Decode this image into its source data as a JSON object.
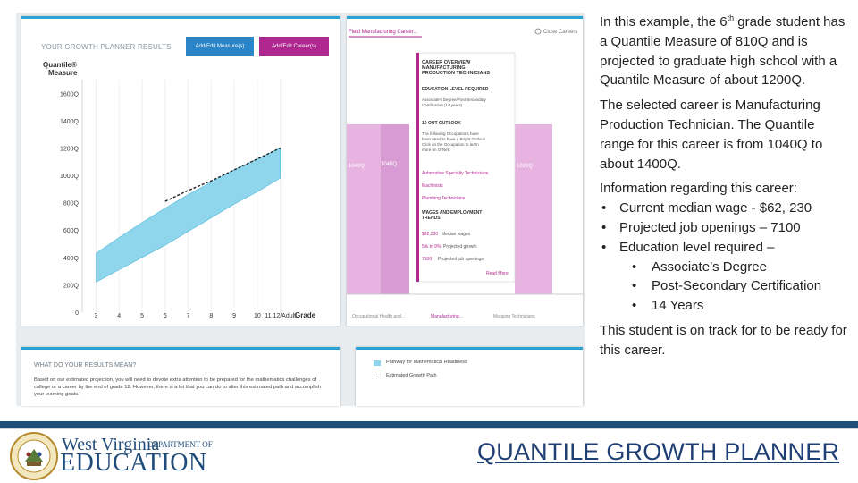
{
  "shot": {
    "results_title": "YOUR GROWTH PLANNER RESULTS",
    "btn_measure": "Add/Edit Measure(s)",
    "btn_career": "Add/Edit Career(s)",
    "y_title_1": "Quantile®",
    "y_title_2": "Measure",
    "y_ticks": [
      "1600Q",
      "1400Q",
      "1200Q",
      "1000Q",
      "800Q",
      "600Q",
      "400Q",
      "200Q",
      "0"
    ],
    "x_ticks": [
      "3",
      "4",
      "5",
      "6",
      "7",
      "8",
      "9",
      "10",
      "11 12/Adult"
    ],
    "x_title": "Grade",
    "career_tab": "Field Manufacturing Career...",
    "close": "Close Careers",
    "band_left_low": "1040Q",
    "band_left_high": "1040Q",
    "band_right": "1020Q",
    "career_overview": {
      "heading": "CAREER OVERVIEW MANUFACTURING PRODUCTION TECHNICIANS",
      "education_heading": "EDUCATION LEVEL REQUIRED",
      "education_text": "Associate's Degree/Post-Secondary Certification (14 years)",
      "outlook_heading": "10 OUT OUTLOOK",
      "outlook_text": "The following Occupations have been rated to have a Bright Outlook. Click on the Occupation to learn more on O*Net:",
      "links": [
        "Automotive Specialty Technicians",
        "Machinists",
        "Plumbing Technicians"
      ],
      "wages_heading": "WAGES AND EMPLOYMENT TRENDS",
      "wage": "$62,230",
      "wage_label": "Median wages",
      "growth": "5% to 9%",
      "growth_label": "Projected growth",
      "openings": "7100",
      "openings_label": "Projected job openings",
      "read_more": "Read More"
    },
    "bottom_labels": [
      "Occupational Health and...",
      "Manufacturing...",
      "Mapping Technicians"
    ],
    "meaning_title": "WHAT DO YOUR RESULTS MEAN?",
    "meaning_text": "Based on our estimated projection, you will need to devote extra attention to be prepared for the mathematics challenges of college or a career by the end of grade 12. However, there is a lot that you can do to alter this estimated path and accomplish your learning goals.",
    "legend_pathway": "Pathway for Mathematical Readiness",
    "legend_estimated": "Estimated Growth Path"
  },
  "explain": {
    "p1_a": "In this example, the 6",
    "p1_sup": "th",
    "p1_b": " grade student has a Quantile Measure of 810Q and is projected to graduate high school with a Quantile Measure of about 1200Q.",
    "p2": "The selected career is Manufacturing Production Technician.  The Quantile range for this career is from 1040Q to about 1400Q.",
    "p3": "Information regarding this career:",
    "bullet1": "Current median wage - $62, 230",
    "bullet2": "Projected job openings – 7100",
    "bullet3": "Education level required –",
    "sub1": "Associate’s Degree",
    "sub2": "Post-Secondary Certification",
    "sub3": "14 Years",
    "p4": "This student is on track for to be ready for this career."
  },
  "footer": {
    "wv_line1": "West Virginia",
    "wv_dept": "DEPARTMENT OF",
    "wv_line2": "EDUCATION",
    "seal_text": "STATE OF WEST VIRGINIA",
    "title": "QUANTILE GROWTH PLANNER"
  },
  "chart_data": {
    "type": "area",
    "title": "",
    "xlabel": "Grade",
    "ylabel": "Quantile® Measure",
    "x": [
      3,
      4,
      5,
      6,
      7,
      8,
      9,
      10,
      11
    ],
    "ylim": [
      0,
      1700
    ],
    "series": [
      {
        "name": "Pathway for Mathematical Readiness",
        "type": "band",
        "x": [
          3,
          4,
          5,
          6,
          7,
          8,
          9,
          10,
          11
        ],
        "low": [
          220,
          310,
          400,
          490,
          590,
          690,
          790,
          880,
          980
        ],
        "high": [
          430,
          545,
          655,
          760,
          860,
          950,
          1040,
          1120,
          1200
        ]
      },
      {
        "name": "Estimated Growth Path",
        "type": "dashed-line",
        "x": [
          6,
          7,
          8,
          9,
          10,
          11
        ],
        "y": [
          810,
          890,
          960,
          1040,
          1120,
          1200
        ]
      }
    ],
    "colors": {
      "band": "#8fd6ec",
      "band_edge": "#4fb8dc",
      "path": "#222222",
      "career_band": "#e7b3e0"
    }
  }
}
